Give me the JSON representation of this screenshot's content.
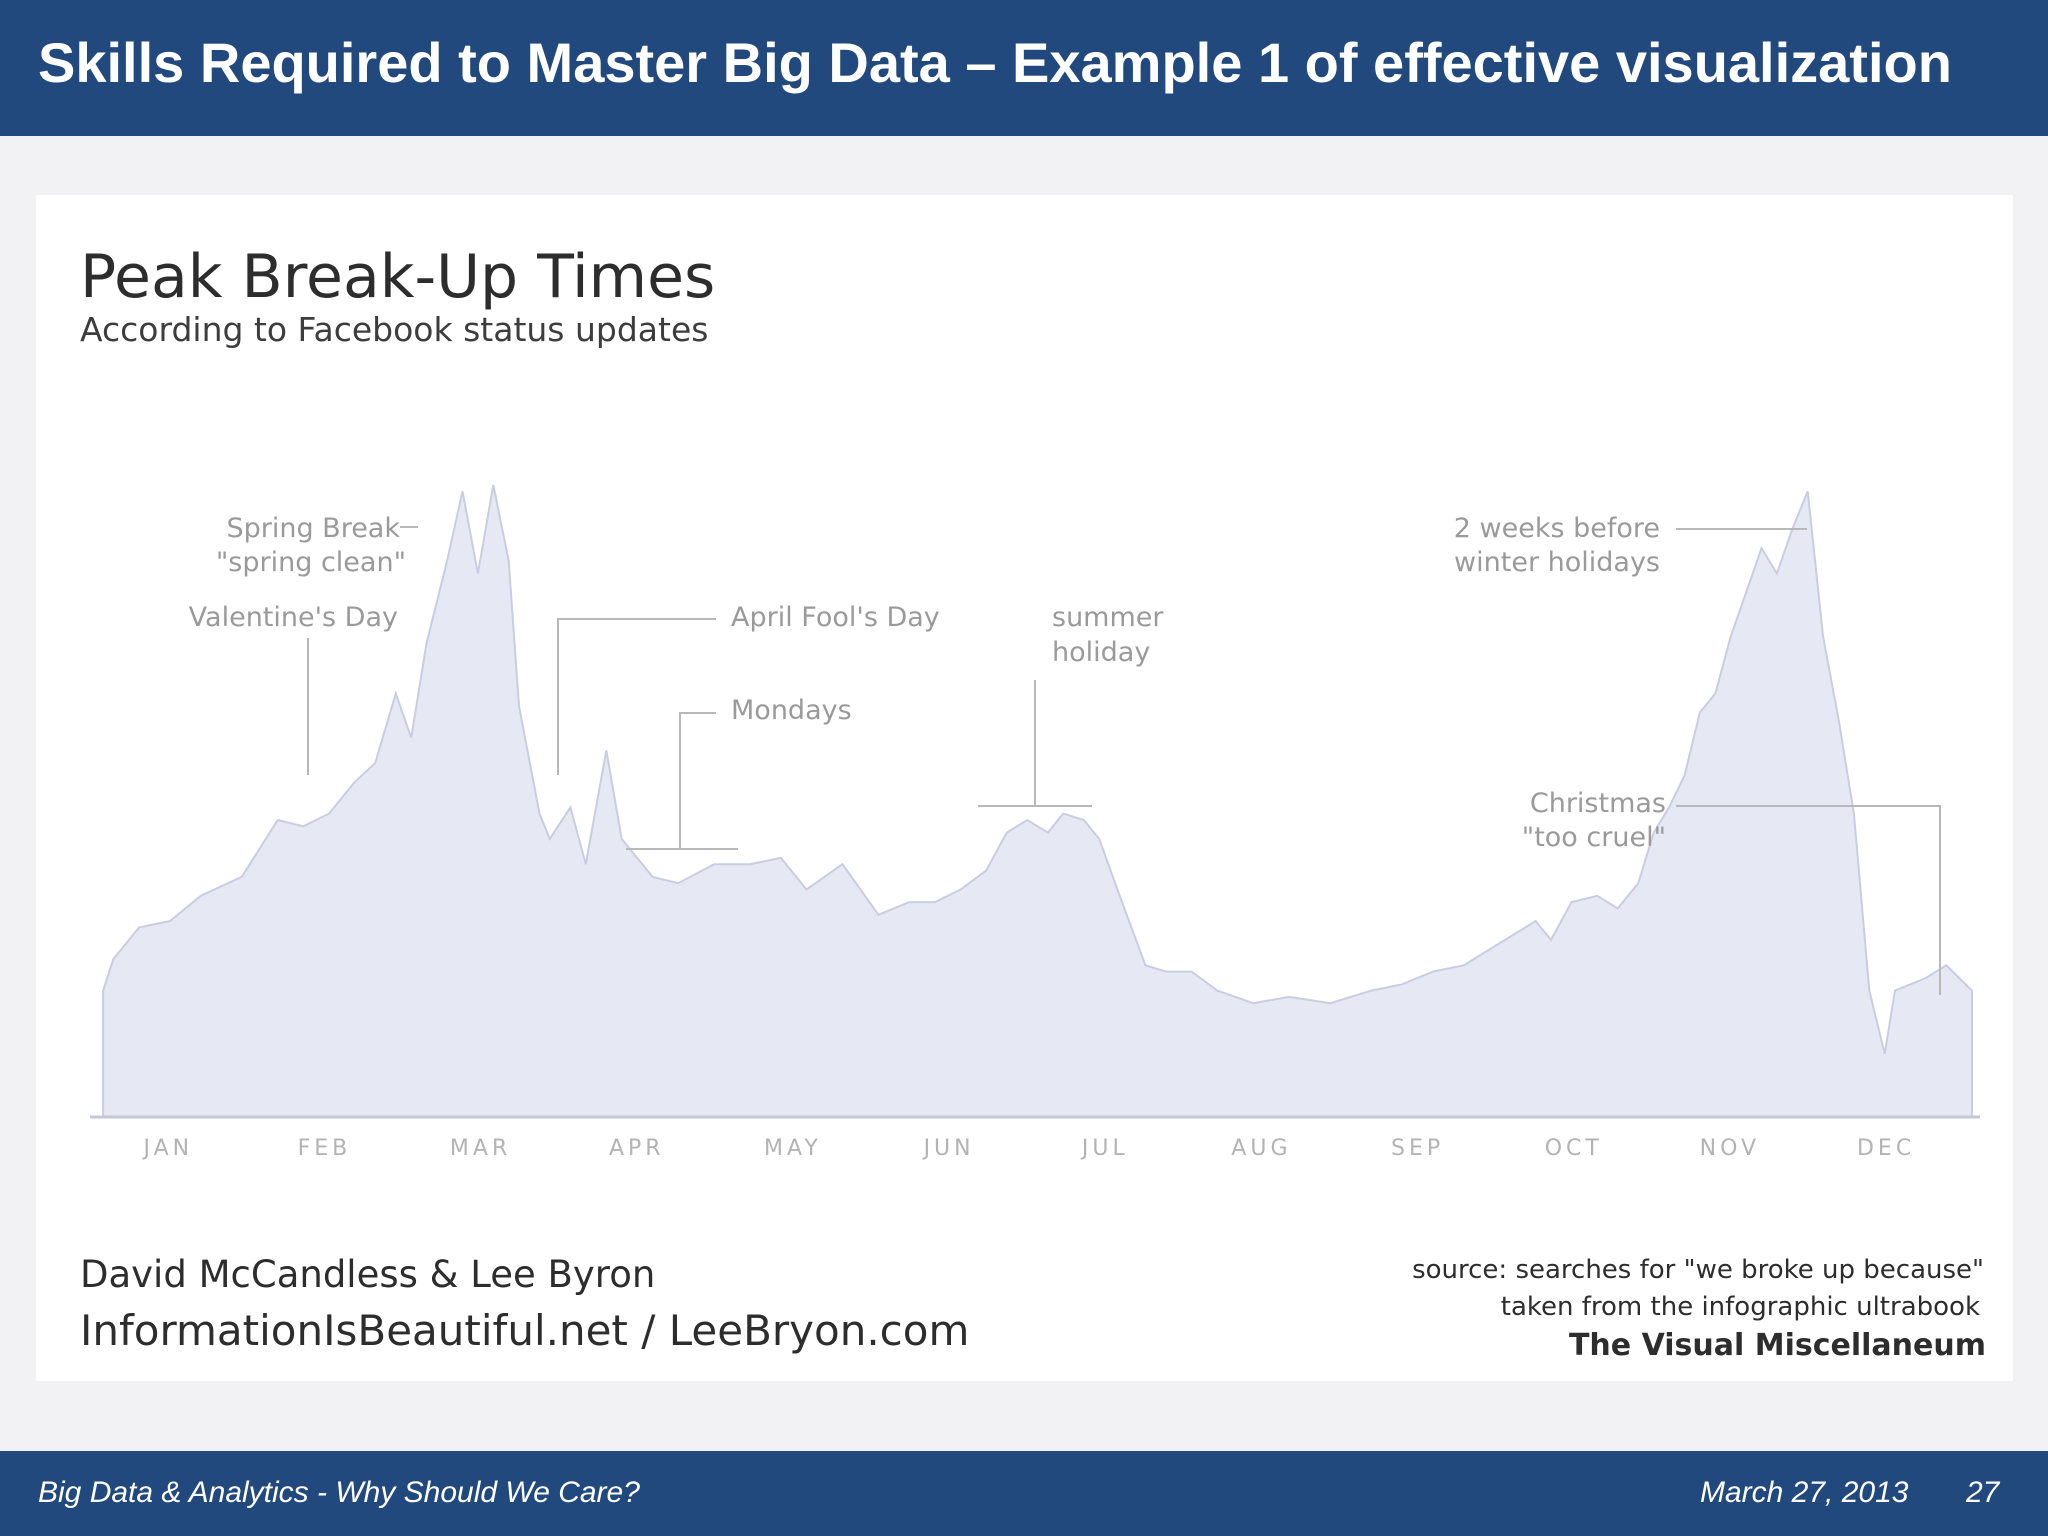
{
  "slide": {
    "title": "Skills Required to Master Big Data – Example 1 of effective visualization",
    "footer_text": "Big Data & Analytics - Why Should We Care?",
    "footer_date": "March 27, 2013",
    "page_number": "27"
  },
  "colors": {
    "header_bg": "#22497e",
    "area_fill": "#e6e9f4",
    "area_stroke": "#c9cde0",
    "annotation_text": "#9a9a9a",
    "title_text": "#333333"
  },
  "credits": {
    "author": "David McCandless & Lee Byron",
    "website": "InformationIsBeautiful.net / LeeBryon.com",
    "source_line1": "source: searches for \"we broke up because\"",
    "source_line2": "taken from the infographic ultrabook",
    "source_line3": "The Visual Miscellaneum"
  },
  "chart_data": {
    "type": "area",
    "title": "Peak Break-Up Times",
    "subtitle": "According to Facebook status updates",
    "xlabel": "",
    "ylabel": "",
    "grid": false,
    "legend": "none",
    "ylim": [
      0,
      100
    ],
    "categories": [
      "JAN",
      "FEB",
      "MAR",
      "APR",
      "MAY",
      "JUN",
      "JUL",
      "AUG",
      "SEP",
      "OCT",
      "NOV",
      "DEC"
    ],
    "series": [
      {
        "values": [
          [
            1,
            20
          ],
          [
            3,
            25
          ],
          [
            8,
            30
          ],
          [
            14,
            31
          ],
          [
            20,
            35
          ],
          [
            28,
            38
          ],
          [
            35,
            47
          ],
          [
            40,
            46
          ],
          [
            45,
            48
          ],
          [
            50,
            53
          ],
          [
            54,
            56
          ],
          [
            58,
            67
          ],
          [
            61,
            60
          ],
          [
            64,
            75
          ],
          [
            68,
            88
          ],
          [
            71,
            99
          ],
          [
            74,
            86
          ],
          [
            77,
            100
          ],
          [
            80,
            88
          ],
          [
            82,
            65
          ],
          [
            86,
            48
          ],
          [
            88,
            44
          ],
          [
            92,
            49
          ],
          [
            95,
            40
          ],
          [
            99,
            58
          ],
          [
            102,
            44
          ],
          [
            108,
            38
          ],
          [
            113,
            37
          ],
          [
            120,
            40
          ],
          [
            127,
            40
          ],
          [
            133,
            41
          ],
          [
            138,
            36
          ],
          [
            145,
            40
          ],
          [
            152,
            32
          ],
          [
            158,
            34
          ],
          [
            163,
            34
          ],
          [
            168,
            36
          ],
          [
            173,
            39
          ],
          [
            177,
            45
          ],
          [
            181,
            47
          ],
          [
            185,
            45
          ],
          [
            188,
            48
          ],
          [
            192,
            47
          ],
          [
            195,
            44
          ],
          [
            199,
            35
          ],
          [
            204,
            24
          ],
          [
            208,
            23
          ],
          [
            213,
            23
          ],
          [
            218,
            20
          ],
          [
            225,
            18
          ],
          [
            232,
            19
          ],
          [
            240,
            18
          ],
          [
            248,
            20
          ],
          [
            254,
            21
          ],
          [
            260,
            23
          ],
          [
            266,
            24
          ],
          [
            272,
            27
          ],
          [
            276,
            29
          ],
          [
            280,
            31
          ],
          [
            283,
            28
          ],
          [
            287,
            34
          ],
          [
            292,
            35
          ],
          [
            296,
            33
          ],
          [
            300,
            37
          ],
          [
            303,
            45
          ],
          [
            306,
            49
          ],
          [
            309,
            54
          ],
          [
            312,
            64
          ],
          [
            315,
            67
          ],
          [
            318,
            76
          ],
          [
            321,
            83
          ],
          [
            324,
            90
          ],
          [
            327,
            86
          ],
          [
            330,
            93
          ],
          [
            333,
            99
          ],
          [
            336,
            76
          ],
          [
            339,
            63
          ],
          [
            342,
            48
          ],
          [
            345,
            20
          ],
          [
            348,
            10
          ],
          [
            350,
            20
          ],
          [
            353,
            21
          ],
          [
            356,
            22
          ],
          [
            360,
            24
          ],
          [
            365,
            20
          ]
        ]
      }
    ],
    "annotations": [
      "Spring Break",
      "\"spring clean\"",
      "Valentine's Day",
      "April Fool's Day",
      "Mondays",
      "summer",
      "holiday",
      "2 weeks before",
      "winter holidays",
      "Christmas",
      "\"too cruel\""
    ]
  }
}
